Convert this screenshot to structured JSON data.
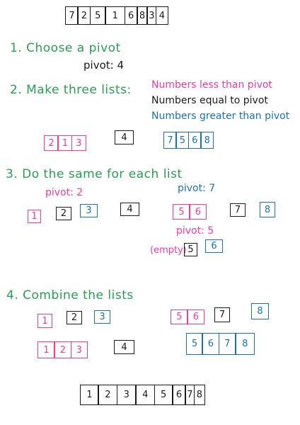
{
  "initial_array": [
    "7",
    "2",
    "5",
    "1",
    "6",
    "8",
    "3",
    "4"
  ],
  "step1": {
    "title": "1.  Choose  a  pivot",
    "pivot_label": "pivot: 4"
  },
  "step2": {
    "title": "2.  Make  three  lists:",
    "legend_less": "Numbers less than pivot",
    "legend_equal": "Numbers equal to pivot",
    "legend_greater": "Numbers greater than pivot",
    "less": [
      "2",
      "1",
      "3"
    ],
    "equal": [
      "4"
    ],
    "greater": [
      "7",
      "5",
      "6",
      "8"
    ]
  },
  "step3": {
    "title": "3.  Do  the  same  for  each  list",
    "left_pivot_label": "pivot: 2",
    "left_less": [
      "1"
    ],
    "left_equal": [
      "2"
    ],
    "left_greater": [
      "3"
    ],
    "middle": [
      "4"
    ],
    "right_pivot_label": "pivot: 7",
    "right_less": [
      "5",
      "6"
    ],
    "right_equal": [
      "7"
    ],
    "right_greater": [
      "8"
    ],
    "sub_pivot_label": "pivot: 5",
    "empty_label": "(empty)",
    "sub_equal": [
      "5"
    ],
    "sub_greater": [
      "6"
    ]
  },
  "step4": {
    "title": "4.  Combine  the  lists",
    "left_parts": [
      "1",
      "2",
      "3"
    ],
    "right_parts": [
      "5",
      "6",
      "7",
      "8"
    ],
    "left_combined": [
      "1",
      "2",
      "3"
    ],
    "middle": [
      "4"
    ],
    "right_combined": [
      "5",
      "6",
      "7",
      "8"
    ]
  },
  "final_array": [
    "1",
    "2",
    "3",
    "4",
    "5",
    "6",
    "7",
    "8"
  ],
  "colors": {
    "less": "#e8409a",
    "equal": "#1a1a1a",
    "greater": "#1f6fb0",
    "step": "#2e9a55"
  }
}
